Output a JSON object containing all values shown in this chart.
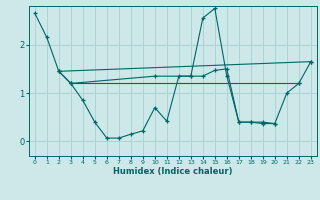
{
  "xlabel": "Humidex (Indice chaleur)",
  "background_color": "#cce8e8",
  "grid_color": "#aacfcf",
  "line_color": "#006666",
  "xlim": [
    -0.5,
    23.5
  ],
  "ylim": [
    -0.3,
    2.8
  ],
  "xticks": [
    0,
    1,
    2,
    3,
    4,
    5,
    6,
    7,
    8,
    9,
    10,
    11,
    12,
    13,
    14,
    15,
    16,
    17,
    18,
    19,
    20,
    21,
    22,
    23
  ],
  "yticks": [
    0,
    1,
    2
  ],
  "line1_x": [
    0,
    1,
    2,
    3,
    4,
    5,
    6,
    7,
    8,
    9,
    10,
    11,
    12,
    13,
    14,
    15,
    16,
    17,
    18,
    19,
    20
  ],
  "line1_y": [
    2.65,
    2.15,
    1.45,
    1.2,
    0.85,
    0.4,
    0.07,
    0.07,
    0.15,
    0.22,
    0.7,
    0.42,
    1.35,
    1.35,
    2.55,
    2.75,
    1.35,
    0.4,
    0.4,
    0.37,
    0.37
  ],
  "line2_x": [
    2,
    3,
    10,
    13,
    14,
    15,
    16,
    17,
    18,
    19,
    20,
    21,
    22,
    23
  ],
  "line2_y": [
    1.45,
    1.2,
    1.35,
    1.35,
    1.35,
    1.47,
    1.5,
    0.4,
    0.4,
    0.4,
    0.37,
    1.0,
    1.2,
    1.65
  ],
  "line3_x": [
    2,
    3,
    23,
    22
  ],
  "line3_y": [
    1.45,
    1.2,
    1.65,
    1.2
  ],
  "line3_segments": [
    [
      2,
      1.45,
      23,
      1.65
    ],
    [
      3,
      1.2,
      22,
      1.2
    ]
  ]
}
